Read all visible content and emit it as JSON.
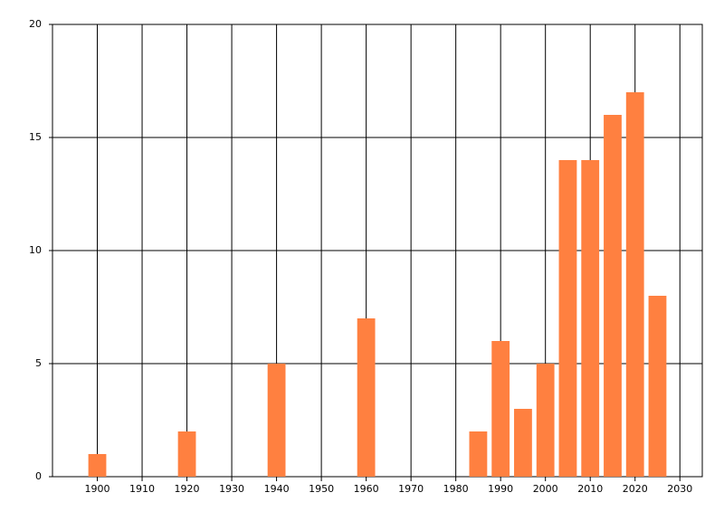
{
  "chart_data": {
    "type": "bar",
    "x": [
      1900,
      1920,
      1940,
      1960,
      1985,
      1990,
      1995,
      2000,
      2005,
      2010,
      2015,
      2020,
      2025
    ],
    "values": [
      1,
      2,
      5,
      7,
      2,
      6,
      3,
      5,
      14,
      14,
      16,
      17,
      8
    ],
    "color": "#ff8040",
    "xlim": [
      1890,
      2035
    ],
    "xticks": [
      1900,
      1910,
      1920,
      1930,
      1940,
      1950,
      1960,
      1970,
      1980,
      1990,
      2000,
      2010,
      2020,
      2030
    ],
    "ylim": [
      0,
      20
    ],
    "yticks": [
      0,
      5,
      10,
      15,
      20
    ],
    "grid": true
  }
}
